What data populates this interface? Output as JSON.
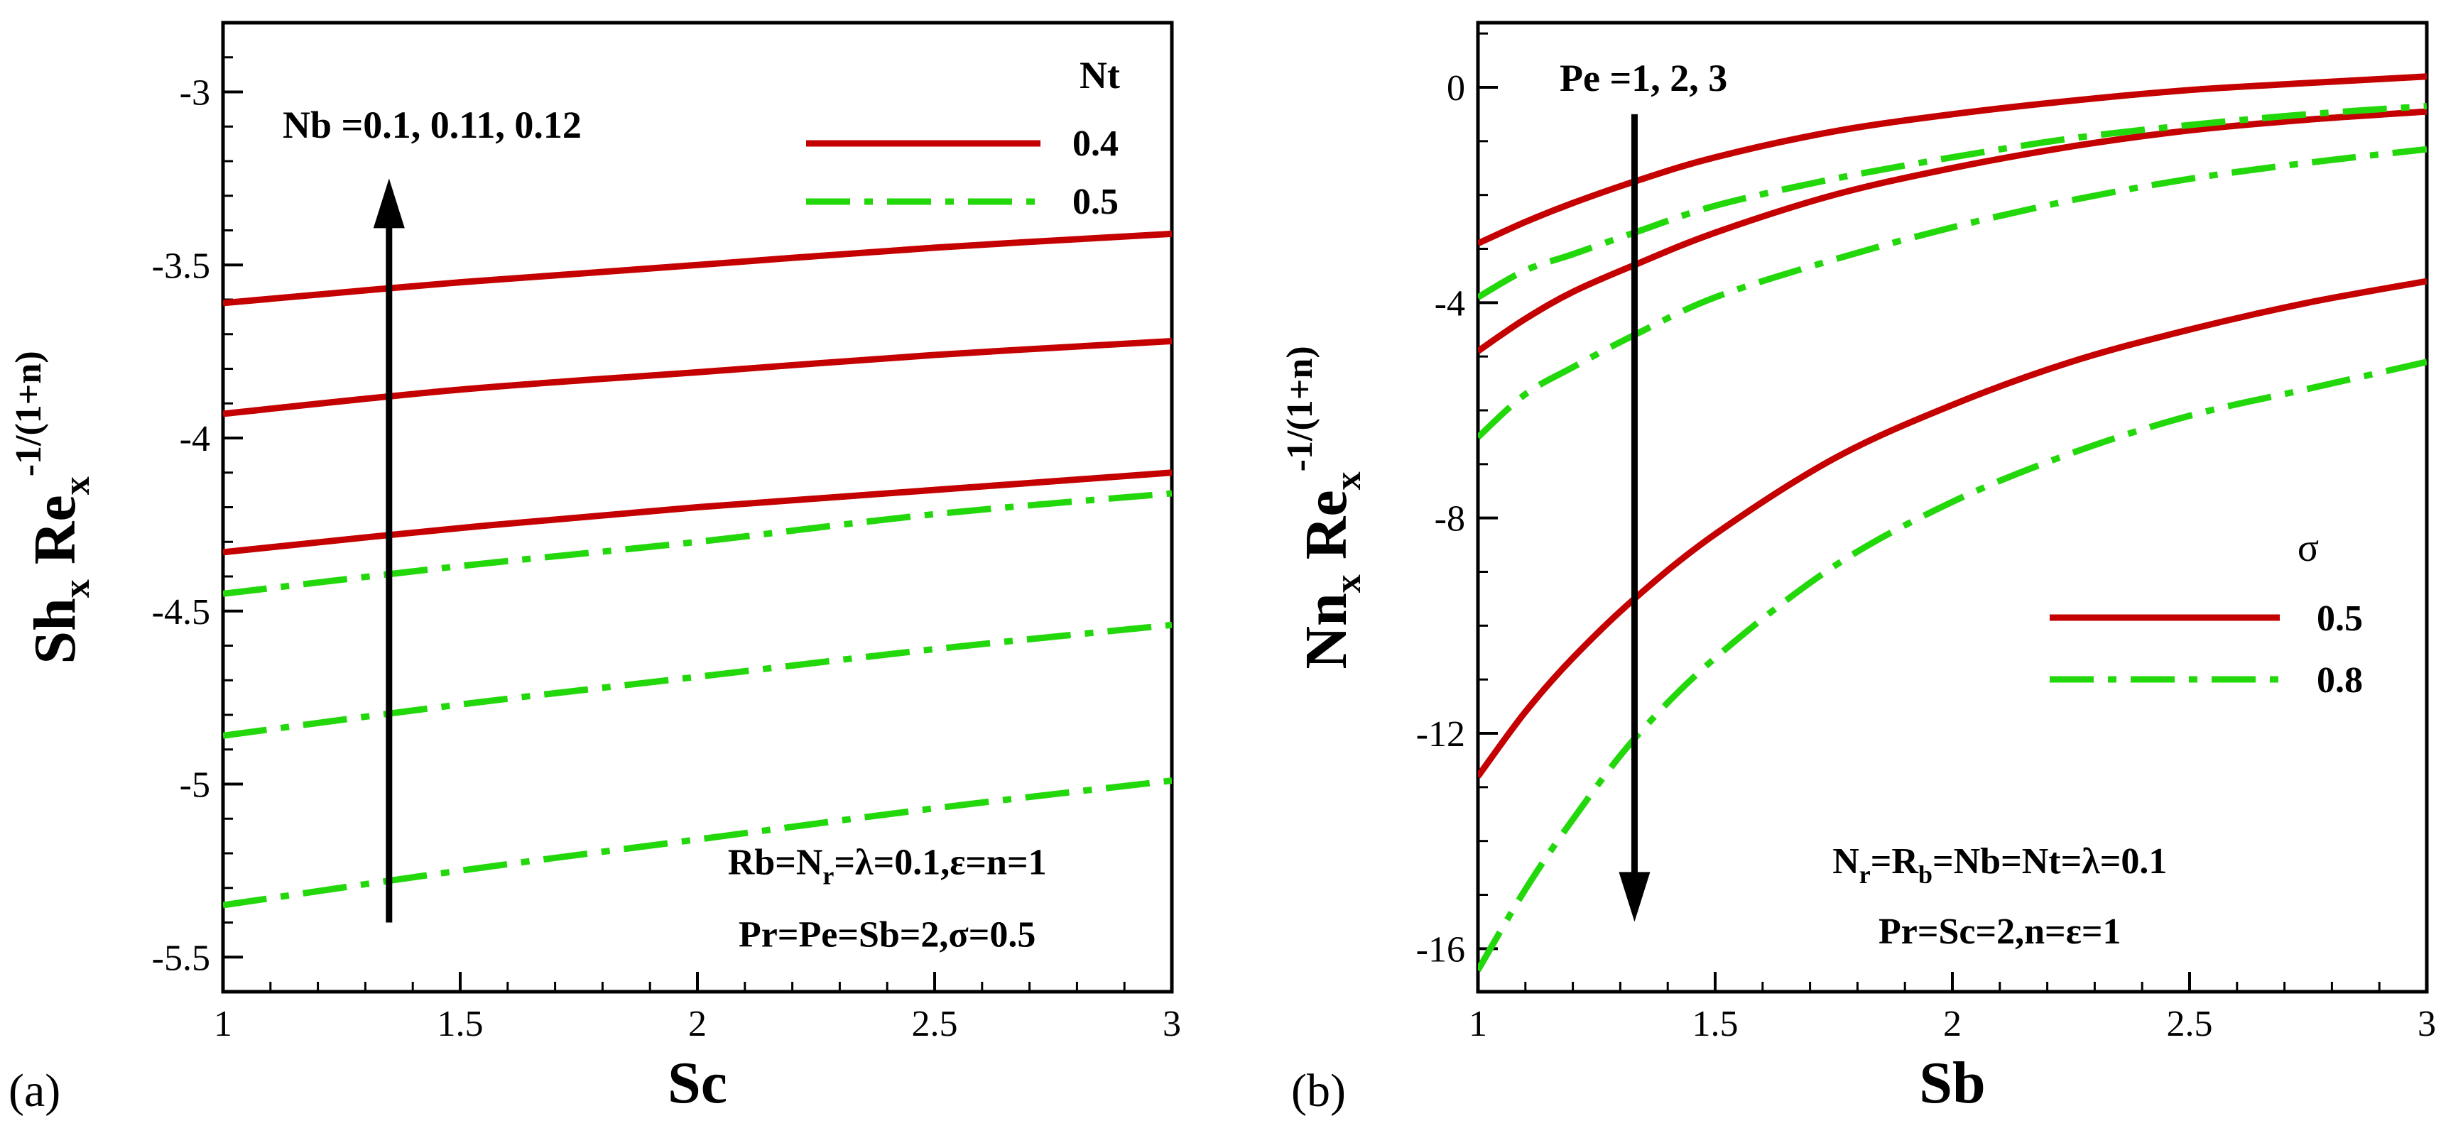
{
  "colors": {
    "red": "#c40000",
    "green": "#22d80a",
    "axis": "#000000",
    "arrow": "#000000"
  },
  "chart_data": [
    {
      "id": "a",
      "panel_label": "(a)",
      "type": "line",
      "xlabel": "Sc",
      "ylabel": {
        "base": "Sh",
        "sub1": "x",
        "mid": " Re",
        "sub2": "x",
        "sup": "-1/(1+n)"
      },
      "xlim": [
        1,
        3
      ],
      "ylim": [
        -5.6,
        -2.8
      ],
      "xticks": [
        1,
        1.5,
        2,
        2.5,
        3
      ],
      "xtick_labels": [
        "1",
        "1.5",
        "2",
        "2.5",
        "3"
      ],
      "yticks": [
        -5.5,
        -5,
        -4.5,
        -4,
        -3.5,
        -3
      ],
      "ytick_labels": [
        "-5.5",
        "-5",
        "-4.5",
        "-4",
        "-3.5",
        "-3"
      ],
      "ytick_minor_step": 0.1,
      "xtick_minor_step": 0.1,
      "legend": {
        "title": "Nt",
        "placement": "top-right",
        "entries": [
          {
            "label": "0.4",
            "color_key": "red",
            "dash": "solid"
          },
          {
            "label": "0.5",
            "color_key": "green",
            "dash": "dashdot"
          }
        ]
      },
      "arrow": {
        "label": "Nb =0.1, 0.11, 0.12",
        "x": 1.35,
        "y_from": -5.4,
        "y_to": -3.25,
        "direction": "up"
      },
      "annotations": [
        {
          "parts": [
            {
              "t": "Rb=N"
            },
            {
              "t": "r",
              "sub": true
            },
            {
              "t": "=λ=0.1,ε=n=1"
            }
          ],
          "x": 2.4,
          "y": -5.26
        },
        {
          "parts": [
            {
              "t": "Pr=Pe=Sb=2,σ=0.5"
            }
          ],
          "x": 2.4,
          "y": -5.47
        }
      ],
      "series": [
        {
          "name": "Nt=0.4, Nb=0.12",
          "color_key": "red",
          "dash": "solid",
          "x": [
            1,
            1.5,
            2,
            2.5,
            3
          ],
          "y": [
            -3.61,
            -3.55,
            -3.5,
            -3.45,
            -3.41
          ]
        },
        {
          "name": "Nt=0.4, Nb=0.11",
          "color_key": "red",
          "dash": "solid",
          "x": [
            1,
            1.5,
            2,
            2.5,
            3
          ],
          "y": [
            -3.93,
            -3.86,
            -3.81,
            -3.76,
            -3.72
          ]
        },
        {
          "name": "Nt=0.4, Nb=0.1",
          "color_key": "red",
          "dash": "solid",
          "x": [
            1,
            1.5,
            2,
            2.5,
            3
          ],
          "y": [
            -4.33,
            -4.26,
            -4.2,
            -4.15,
            -4.1
          ]
        },
        {
          "name": "Nt=0.5, Nb=0.12",
          "color_key": "green",
          "dash": "dashdot",
          "x": [
            1,
            1.5,
            2,
            2.5,
            3
          ],
          "y": [
            -4.45,
            -4.37,
            -4.3,
            -4.22,
            -4.16
          ]
        },
        {
          "name": "Nt=0.5, Nb=0.11",
          "color_key": "green",
          "dash": "dashdot",
          "x": [
            1,
            1.5,
            2,
            2.5,
            3
          ],
          "y": [
            -4.86,
            -4.77,
            -4.69,
            -4.61,
            -4.54
          ]
        },
        {
          "name": "Nt=0.5, Nb=0.1",
          "color_key": "green",
          "dash": "dashdot",
          "x": [
            1,
            1.5,
            2,
            2.5,
            3
          ],
          "y": [
            -5.35,
            -5.25,
            -5.16,
            -5.07,
            -4.99
          ]
        }
      ]
    },
    {
      "id": "b",
      "panel_label": "(b)",
      "type": "line",
      "xlabel": "Sb",
      "ylabel": {
        "base": "Nn",
        "sub1": "x",
        "mid": " Re",
        "sub2": "x",
        "sup": "-1/(1+n)"
      },
      "xlim": [
        1,
        3
      ],
      "ylim": [
        -16.8,
        1.2
      ],
      "xticks": [
        1,
        1.5,
        2,
        2.5,
        3
      ],
      "xtick_labels": [
        "1",
        "1.5",
        "2",
        "2.5",
        "3"
      ],
      "yticks": [
        -16,
        -12,
        -8,
        -4,
        0
      ],
      "ytick_labels": [
        "-16",
        "-12",
        "-8",
        "-4",
        "0"
      ],
      "ytick_minor_step": 1,
      "xtick_minor_step": 0.1,
      "legend": {
        "title": "σ",
        "placement": "middle-right",
        "entries": [
          {
            "label": "0.5",
            "color_key": "red",
            "dash": "solid"
          },
          {
            "label": "0.8",
            "color_key": "green",
            "dash": "dashdot"
          }
        ]
      },
      "arrow": {
        "label": "Pe =1, 2, 3",
        "x": 1.33,
        "y_from": -0.5,
        "y_to": -15.5,
        "direction": "down"
      },
      "annotations": [
        {
          "parts": [
            {
              "t": "N"
            },
            {
              "t": "r",
              "sub": true
            },
            {
              "t": "=R"
            },
            {
              "t": "b",
              "sub": true
            },
            {
              "t": "=Nb=Nt=λ=0.1"
            }
          ],
          "x": 2.1,
          "y": -14.6
        },
        {
          "parts": [
            {
              "t": "Pr=Sc=2,n=ε=1"
            }
          ],
          "x": 2.1,
          "y": -15.9
        }
      ],
      "series": [
        {
          "name": "σ=0.5, Pe=1",
          "color_key": "red",
          "dash": "solid",
          "x": [
            1,
            1.1,
            1.2,
            1.33,
            1.5,
            1.75,
            2,
            2.25,
            2.5,
            2.75,
            3
          ],
          "y": [
            -2.9,
            -2.5,
            -2.15,
            -1.75,
            -1.3,
            -0.82,
            -0.5,
            -0.25,
            -0.05,
            0.08,
            0.2
          ]
        },
        {
          "name": "σ=0.5, Pe=2",
          "color_key": "red",
          "dash": "solid",
          "x": [
            1,
            1.1,
            1.2,
            1.33,
            1.5,
            1.75,
            2,
            2.25,
            2.5,
            2.75,
            3
          ],
          "y": [
            -4.9,
            -4.3,
            -3.8,
            -3.3,
            -2.7,
            -2.0,
            -1.5,
            -1.1,
            -0.8,
            -0.6,
            -0.45
          ]
        },
        {
          "name": "σ=0.5, Pe=3",
          "color_key": "red",
          "dash": "solid",
          "x": [
            1,
            1.1,
            1.2,
            1.33,
            1.5,
            1.75,
            2,
            2.25,
            2.5,
            2.75,
            3
          ],
          "y": [
            -12.8,
            -11.6,
            -10.6,
            -9.5,
            -8.3,
            -6.9,
            -5.9,
            -5.1,
            -4.5,
            -4.0,
            -3.6
          ]
        },
        {
          "name": "σ=0.8, Pe=1",
          "color_key": "green",
          "dash": "dashdot",
          "x": [
            1,
            1.1,
            1.2,
            1.33,
            1.5,
            1.75,
            2,
            2.25,
            2.5,
            2.75,
            3
          ],
          "y": [
            -3.9,
            -3.4,
            -3.1,
            -2.7,
            -2.2,
            -1.7,
            -1.3,
            -0.95,
            -0.7,
            -0.5,
            -0.35
          ]
        },
        {
          "name": "σ=0.8, Pe=2",
          "color_key": "green",
          "dash": "dashdot",
          "x": [
            1,
            1.1,
            1.2,
            1.33,
            1.5,
            1.75,
            2,
            2.25,
            2.5,
            2.75,
            3
          ],
          "y": [
            -6.5,
            -5.7,
            -5.2,
            -4.6,
            -3.9,
            -3.2,
            -2.6,
            -2.1,
            -1.7,
            -1.4,
            -1.15
          ]
        },
        {
          "name": "σ=0.8, Pe=3",
          "color_key": "green",
          "dash": "dashdot",
          "x": [
            1,
            1.1,
            1.2,
            1.33,
            1.5,
            1.75,
            2,
            2.25,
            2.5,
            2.75,
            3
          ],
          "y": [
            -16.4,
            -14.9,
            -13.6,
            -12.1,
            -10.6,
            -8.9,
            -7.7,
            -6.8,
            -6.1,
            -5.6,
            -5.1
          ]
        }
      ]
    }
  ]
}
